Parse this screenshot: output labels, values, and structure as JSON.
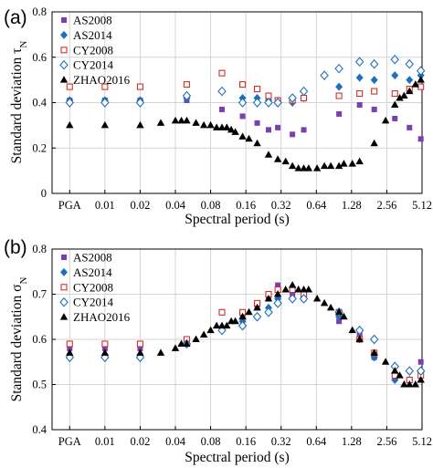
{
  "chart_data": [
    {
      "type": "scatter",
      "panel_label": "(a)",
      "xlabel": "Spectral period (s)",
      "ylabel": "Standard deviation τ",
      "ylabel_subscript": "N",
      "xtick_labels": [
        "PGA",
        "0.01",
        "0.02",
        "0.04",
        "0.08",
        "0.16",
        "0.32",
        "0.64",
        "1.28",
        "2.56",
        "5.12"
      ],
      "ylim": [
        0,
        0.8
      ],
      "yticks": [
        0,
        0.2,
        0.4,
        0.6,
        0.8
      ],
      "grid": true,
      "legend_position": "top-left",
      "series": [
        {
          "name": "AS2008",
          "marker": "square-filled",
          "color": "#7b3fb0",
          "points": [
            [
              "PGA",
              0.41
            ],
            [
              0.01,
              0.41
            ],
            [
              0.02,
              0.41
            ],
            [
              0.05,
              0.41
            ],
            [
              0.1,
              0.37
            ],
            [
              0.15,
              0.34
            ],
            [
              0.2,
              0.31
            ],
            [
              0.25,
              0.28
            ],
            [
              0.3,
              0.29
            ],
            [
              0.4,
              0.26
            ],
            [
              0.5,
              0.28
            ],
            [
              1.0,
              0.35
            ],
            [
              1.5,
              0.39
            ],
            [
              2.0,
              0.37
            ],
            [
              3.0,
              0.33
            ],
            [
              4.0,
              0.29
            ],
            [
              5.0,
              0.24
            ]
          ]
        },
        {
          "name": "AS2014",
          "marker": "diamond-filled",
          "color": "#1f6fc0",
          "points": [
            [
              "PGA",
              0.41
            ],
            [
              0.01,
              0.41
            ],
            [
              0.02,
              0.41
            ],
            [
              0.05,
              0.42
            ],
            [
              0.1,
              0.45
            ],
            [
              0.15,
              0.42
            ],
            [
              0.2,
              0.42
            ],
            [
              0.25,
              0.41
            ],
            [
              0.3,
              0.4
            ],
            [
              0.4,
              0.4
            ],
            [
              0.5,
              0.42
            ],
            [
              1.0,
              0.47
            ],
            [
              1.5,
              0.51
            ],
            [
              2.0,
              0.5
            ],
            [
              3.0,
              0.52
            ],
            [
              4.0,
              0.5
            ],
            [
              5.0,
              0.52
            ]
          ]
        },
        {
          "name": "CY2008",
          "marker": "square-open",
          "color": "#d2302c",
          "points": [
            [
              "PGA",
              0.47
            ],
            [
              0.01,
              0.47
            ],
            [
              0.02,
              0.47
            ],
            [
              0.05,
              0.48
            ],
            [
              0.1,
              0.53
            ],
            [
              0.15,
              0.48
            ],
            [
              0.2,
              0.46
            ],
            [
              0.25,
              0.43
            ],
            [
              0.3,
              0.41
            ],
            [
              0.4,
              0.41
            ],
            [
              0.5,
              0.42
            ],
            [
              1.0,
              0.43
            ],
            [
              1.5,
              0.44
            ],
            [
              2.0,
              0.45
            ],
            [
              3.0,
              0.44
            ],
            [
              4.0,
              0.46
            ],
            [
              5.0,
              0.47
            ]
          ]
        },
        {
          "name": "CY2014",
          "marker": "diamond-open",
          "color": "#1f6fc0",
          "points": [
            [
              "PGA",
              0.4
            ],
            [
              0.01,
              0.4
            ],
            [
              0.02,
              0.4
            ],
            [
              0.05,
              0.43
            ],
            [
              0.1,
              0.45
            ],
            [
              0.15,
              0.4
            ],
            [
              0.2,
              0.4
            ],
            [
              0.25,
              0.4
            ],
            [
              0.3,
              0.4
            ],
            [
              0.4,
              0.42
            ],
            [
              0.5,
              0.45
            ],
            [
              0.75,
              0.52
            ],
            [
              1.0,
              0.55
            ],
            [
              1.5,
              0.58
            ],
            [
              2.0,
              0.57
            ],
            [
              3.0,
              0.59
            ],
            [
              4.0,
              0.57
            ],
            [
              5.0,
              0.54
            ]
          ]
        },
        {
          "name": "ZHAO2016",
          "marker": "triangle-filled",
          "color": "#000000",
          "points": [
            [
              "PGA",
              0.3
            ],
            [
              0.01,
              0.3
            ],
            [
              0.02,
              0.3
            ],
            [
              0.03,
              0.31
            ],
            [
              0.04,
              0.32
            ],
            [
              0.045,
              0.32
            ],
            [
              0.05,
              0.32
            ],
            [
              0.06,
              0.31
            ],
            [
              0.07,
              0.3
            ],
            [
              0.08,
              0.3
            ],
            [
              0.09,
              0.29
            ],
            [
              0.1,
              0.29
            ],
            [
              0.11,
              0.29
            ],
            [
              0.12,
              0.28
            ],
            [
              0.13,
              0.27
            ],
            [
              0.15,
              0.25
            ],
            [
              0.17,
              0.24
            ],
            [
              0.2,
              0.22
            ],
            [
              0.25,
              0.17
            ],
            [
              0.3,
              0.15
            ],
            [
              0.35,
              0.14
            ],
            [
              0.4,
              0.12
            ],
            [
              0.45,
              0.11
            ],
            [
              0.5,
              0.11
            ],
            [
              0.55,
              0.11
            ],
            [
              0.65,
              0.11
            ],
            [
              0.75,
              0.12
            ],
            [
              0.85,
              0.12
            ],
            [
              1.0,
              0.12
            ],
            [
              1.1,
              0.13
            ],
            [
              1.3,
              0.13
            ],
            [
              1.5,
              0.14
            ],
            [
              2.0,
              0.22
            ],
            [
              2.5,
              0.32
            ],
            [
              3.0,
              0.39
            ],
            [
              3.3,
              0.42
            ],
            [
              3.6,
              0.43
            ],
            [
              4.0,
              0.45
            ],
            [
              4.5,
              0.48
            ],
            [
              5.0,
              0.5
            ]
          ]
        }
      ]
    },
    {
      "type": "scatter",
      "panel_label": "(b)",
      "xlabel": "Spectral period (s)",
      "ylabel": "Standard deviation σ",
      "ylabel_subscript": "N",
      "xtick_labels": [
        "PGA",
        "0.01",
        "0.02",
        "0.04",
        "0.08",
        "0.16",
        "0.32",
        "0.64",
        "1.28",
        "2.56",
        "5.12"
      ],
      "ylim": [
        0.4,
        0.8
      ],
      "yticks": [
        0.4,
        0.5,
        0.6,
        0.7,
        0.8
      ],
      "grid": true,
      "legend_position": "top-left",
      "series": [
        {
          "name": "AS2008",
          "marker": "square-filled",
          "color": "#7b3fb0",
          "points": [
            [
              "PGA",
              0.58
            ],
            [
              0.01,
              0.58
            ],
            [
              0.02,
              0.58
            ],
            [
              0.05,
              0.6
            ],
            [
              0.1,
              0.66
            ],
            [
              0.15,
              0.65
            ],
            [
              0.2,
              0.67
            ],
            [
              0.25,
              0.69
            ],
            [
              0.3,
              0.72
            ],
            [
              0.4,
              0.7
            ],
            [
              0.5,
              0.69
            ],
            [
              1.0,
              0.64
            ],
            [
              1.5,
              0.61
            ],
            [
              2.0,
              0.56
            ],
            [
              3.0,
              0.52
            ],
            [
              4.0,
              0.51
            ],
            [
              5.0,
              0.55
            ]
          ]
        },
        {
          "name": "AS2014",
          "marker": "diamond-filled",
          "color": "#1f6fc0",
          "points": [
            [
              "PGA",
              0.56
            ],
            [
              0.01,
              0.56
            ],
            [
              0.02,
              0.56
            ],
            [
              0.05,
              0.59
            ],
            [
              0.1,
              0.62
            ],
            [
              0.15,
              0.64
            ],
            [
              0.2,
              0.65
            ],
            [
              0.25,
              0.67
            ],
            [
              0.3,
              0.69
            ],
            [
              0.4,
              0.69
            ],
            [
              0.5,
              0.69
            ],
            [
              1.0,
              0.65
            ],
            [
              1.5,
              0.6
            ],
            [
              2.0,
              0.56
            ],
            [
              3.0,
              0.51
            ],
            [
              4.0,
              0.51
            ],
            [
              5.0,
              0.53
            ]
          ]
        },
        {
          "name": "CY2008",
          "marker": "square-open",
          "color": "#d2302c",
          "points": [
            [
              "PGA",
              0.59
            ],
            [
              0.01,
              0.59
            ],
            [
              0.02,
              0.59
            ],
            [
              0.05,
              0.6
            ],
            [
              0.1,
              0.66
            ],
            [
              0.15,
              0.66
            ],
            [
              0.2,
              0.68
            ],
            [
              0.25,
              0.7
            ],
            [
              0.3,
              0.71
            ],
            [
              0.4,
              0.71
            ],
            [
              0.5,
              0.7
            ],
            [
              1.0,
              0.66
            ],
            [
              1.5,
              0.6
            ],
            [
              2.0,
              0.57
            ],
            [
              3.0,
              0.52
            ],
            [
              4.0,
              0.51
            ],
            [
              5.0,
              0.52
            ]
          ]
        },
        {
          "name": "CY2014",
          "marker": "diamond-open",
          "color": "#1f6fc0",
          "points": [
            [
              "PGA",
              0.56
            ],
            [
              0.01,
              0.56
            ],
            [
              0.02,
              0.56
            ],
            [
              0.05,
              0.59
            ],
            [
              0.1,
              0.62
            ],
            [
              0.15,
              0.63
            ],
            [
              0.2,
              0.65
            ],
            [
              0.25,
              0.66
            ],
            [
              0.3,
              0.68
            ],
            [
              0.4,
              0.69
            ],
            [
              0.5,
              0.69
            ],
            [
              1.0,
              0.66
            ],
            [
              1.5,
              0.62
            ],
            [
              2.0,
              0.6
            ],
            [
              3.0,
              0.54
            ],
            [
              4.0,
              0.53
            ],
            [
              5.0,
              0.53
            ]
          ]
        },
        {
          "name": "ZHAO2016",
          "marker": "triangle-filled",
          "color": "#000000",
          "points": [
            [
              "PGA",
              0.57
            ],
            [
              0.01,
              0.57
            ],
            [
              0.02,
              0.57
            ],
            [
              0.03,
              0.57
            ],
            [
              0.04,
              0.58
            ],
            [
              0.045,
              0.59
            ],
            [
              0.05,
              0.59
            ],
            [
              0.06,
              0.6
            ],
            [
              0.07,
              0.61
            ],
            [
              0.08,
              0.62
            ],
            [
              0.09,
              0.63
            ],
            [
              0.1,
              0.63
            ],
            [
              0.11,
              0.63
            ],
            [
              0.12,
              0.64
            ],
            [
              0.13,
              0.64
            ],
            [
              0.15,
              0.65
            ],
            [
              0.17,
              0.66
            ],
            [
              0.2,
              0.67
            ],
            [
              0.25,
              0.69
            ],
            [
              0.3,
              0.7
            ],
            [
              0.35,
              0.71
            ],
            [
              0.4,
              0.72
            ],
            [
              0.45,
              0.71
            ],
            [
              0.5,
              0.71
            ],
            [
              0.55,
              0.71
            ],
            [
              0.65,
              0.69
            ],
            [
              0.75,
              0.68
            ],
            [
              0.85,
              0.67
            ],
            [
              1.0,
              0.66
            ],
            [
              1.1,
              0.65
            ],
            [
              1.3,
              0.62
            ],
            [
              1.5,
              0.6
            ],
            [
              2.0,
              0.57
            ],
            [
              2.5,
              0.55
            ],
            [
              3.0,
              0.53
            ],
            [
              3.3,
              0.52
            ],
            [
              3.6,
              0.5
            ],
            [
              4.0,
              0.5
            ],
            [
              4.5,
              0.5
            ],
            [
              5.0,
              0.51
            ]
          ]
        }
      ]
    }
  ]
}
